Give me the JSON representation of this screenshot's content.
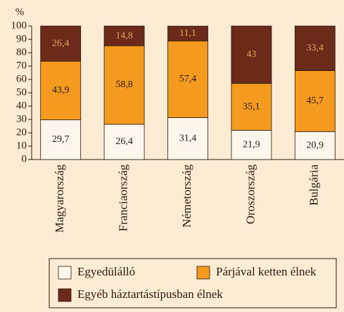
{
  "chart_data": {
    "type": "stacked_bar",
    "y_label": "%",
    "categories": [
      "Magyarország",
      "Franciaország",
      "Németország",
      "Oroszország",
      "Bulgária"
    ],
    "series": [
      {
        "name": "Egyedülálló",
        "color": "#fdf6ea",
        "values": [
          29.7,
          26.4,
          31.4,
          21.9,
          20.9
        ],
        "value_labels": [
          "29,7",
          "26,4",
          "31,4",
          "21,9",
          "20,9"
        ]
      },
      {
        "name": "Párjával ketten élnek",
        "color": "#f39a1f",
        "values": [
          43.9,
          58.8,
          57.4,
          35.1,
          45.7
        ],
        "value_labels": [
          "43,9",
          "58,8",
          "57,4",
          "35,1",
          "45,7"
        ]
      },
      {
        "name": "Egyéb háztartástípusban élnek",
        "color": "#6b2a1a",
        "values": [
          26.4,
          14.8,
          11.1,
          43,
          33.4
        ],
        "value_labels": [
          "26,4",
          "14,8",
          "11,1",
          "43",
          "33,4"
        ]
      }
    ],
    "ylim": [
      0,
      100
    ],
    "yticks": [
      0,
      10,
      20,
      30,
      40,
      50,
      60,
      70,
      80,
      90,
      100
    ]
  }
}
